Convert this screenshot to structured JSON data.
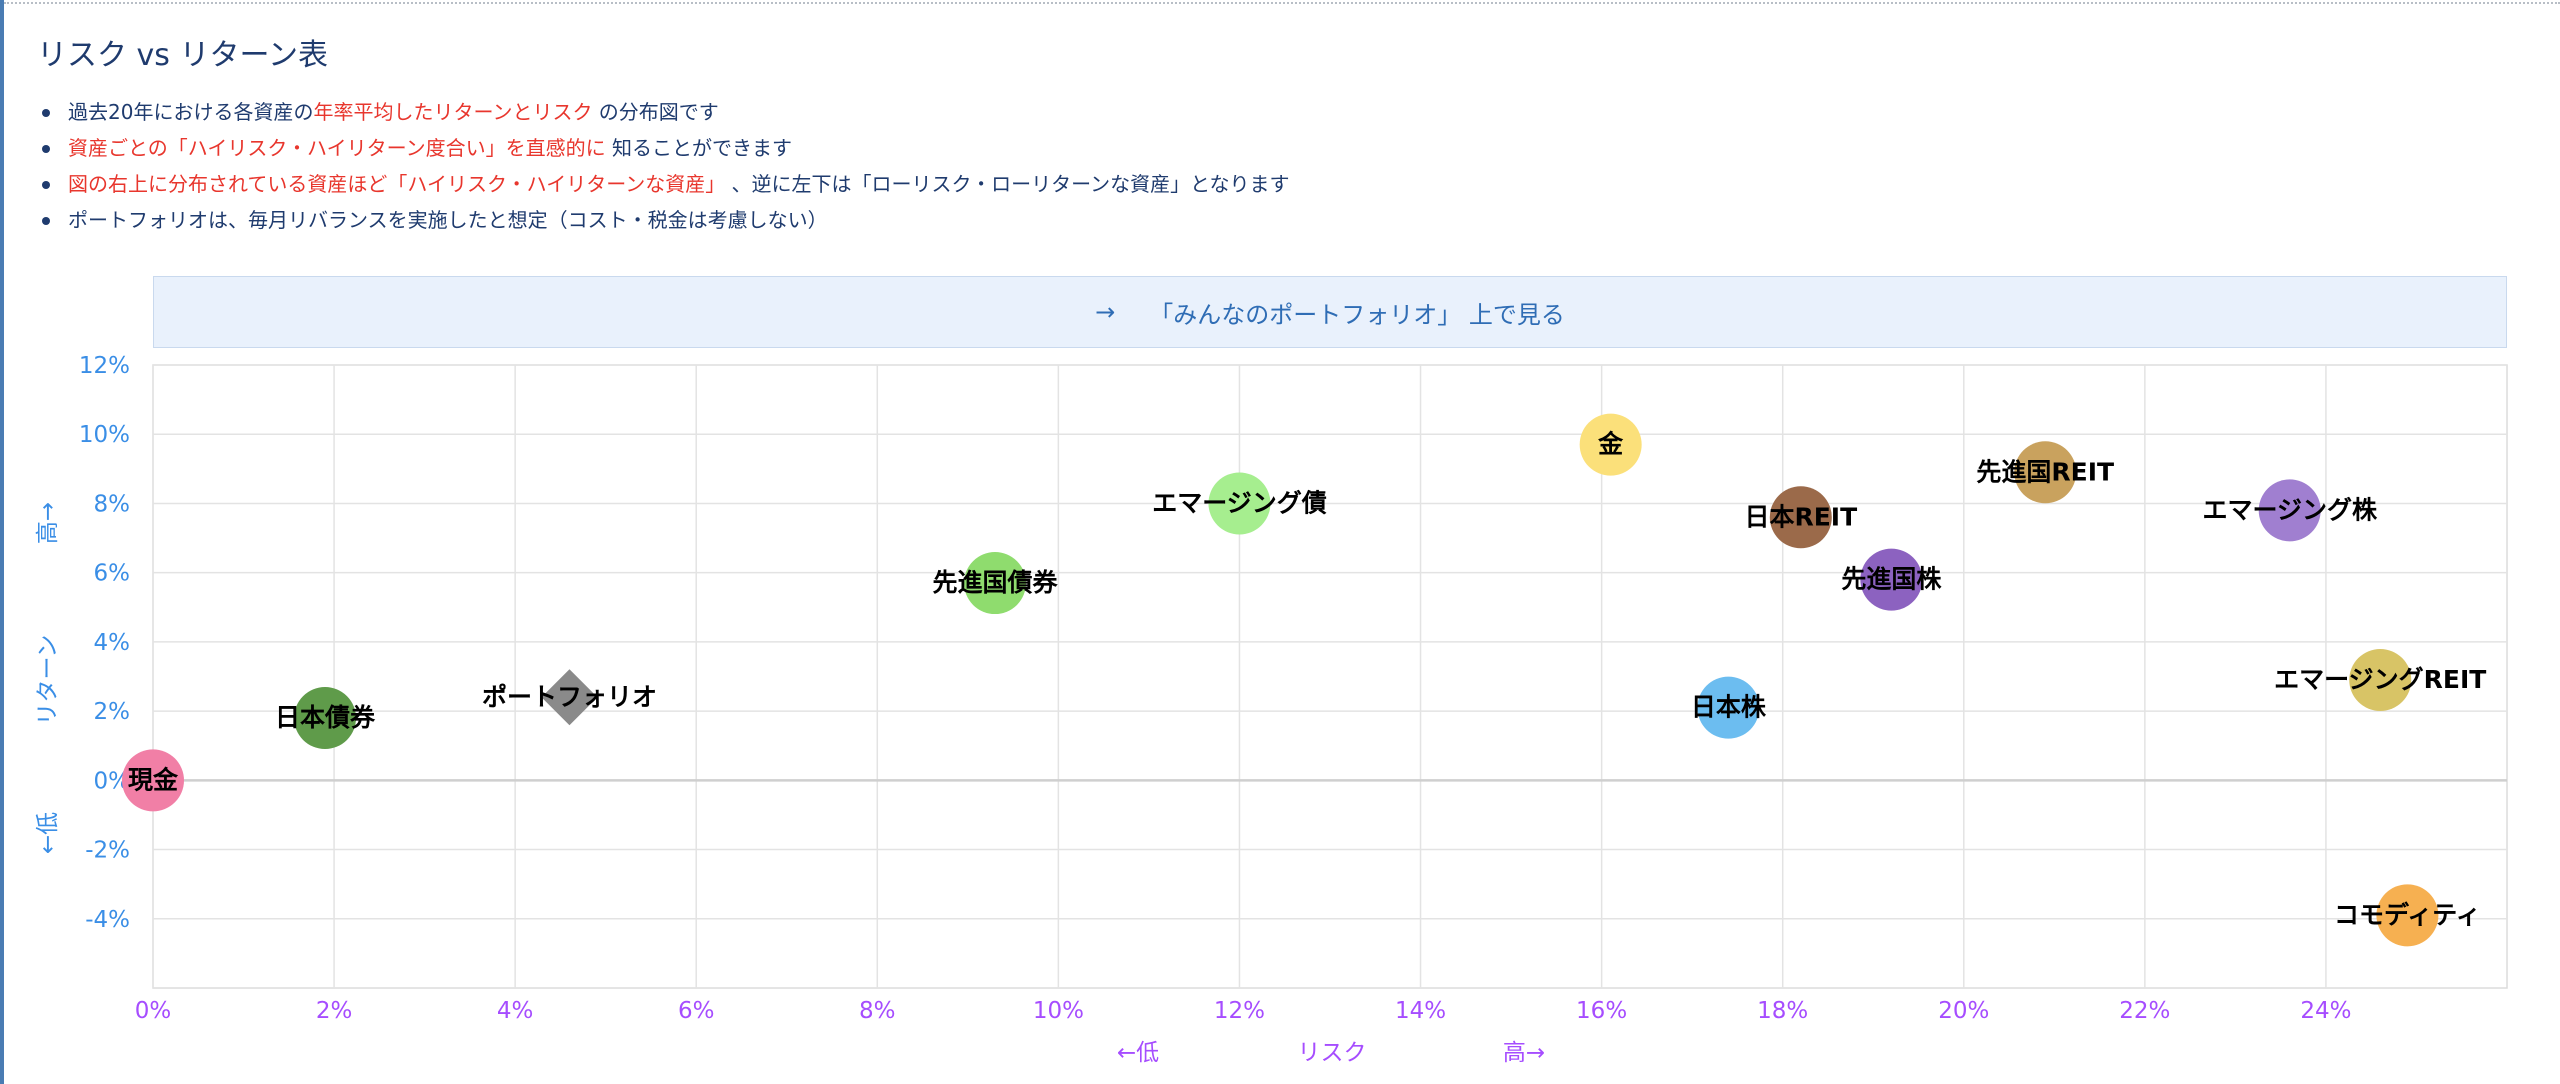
{
  "page": {
    "title": "リスク vs リターン表",
    "notes": [
      {
        "a": "過去20年における各資産の",
        "b": "年率平均したリターンとリスク",
        "c": " の分布図です"
      },
      {
        "a": "",
        "b": "資産ごとの「ハイリスク・ハイリターン度合い」を直感的に",
        "c": " 知ることができます"
      },
      {
        "a": "",
        "b": "図の右上に分布されている資産ほど「ハイリスク・ハイリターンな資産」",
        "c": " 、逆に左下は「ローリスク・ローリターンな資産」となります"
      },
      {
        "a": "ポートフォリオは、毎月リバランスを実施したと想定（コスト・税金は考慮しない）",
        "b": "",
        "c": ""
      }
    ],
    "banner": {
      "arrow": "→",
      "label": "「みんなのポートフォリオ」 上で見る"
    }
  },
  "colors": {
    "text": "#1f3b6e",
    "highlight": "#e8362d",
    "y_axis": "#3a8ee6",
    "x_axis": "#a64dff",
    "banner_bg": "#e9f1fc"
  },
  "chart_data": {
    "type": "scatter",
    "title": "",
    "xlabel": {
      "low": "←低",
      "name": "リスク",
      "high": "高→"
    },
    "ylabel": {
      "low": "←低",
      "name": "リターン",
      "high": "高→"
    },
    "xlim": [
      0,
      26
    ],
    "ylim": [
      -6,
      12
    ],
    "x_ticks": [
      0,
      2,
      4,
      6,
      8,
      10,
      12,
      14,
      16,
      18,
      20,
      22,
      24
    ],
    "y_ticks": [
      12,
      10,
      8,
      6,
      4,
      2,
      0,
      -2,
      -4
    ],
    "grid": true,
    "points": [
      {
        "label": "現金",
        "x": 0.0,
        "y": 0.0,
        "color": "#f17fa6",
        "shape": "circle"
      },
      {
        "label": "日本債券",
        "x": 1.9,
        "y": 1.8,
        "color": "#5f9b4a",
        "shape": "circle"
      },
      {
        "label": "ポートフォリオ",
        "x": 4.6,
        "y": 2.4,
        "color": "#8a8a8a",
        "shape": "diamond"
      },
      {
        "label": "先進国債券",
        "x": 9.3,
        "y": 5.7,
        "color": "#8fdc6e",
        "shape": "circle"
      },
      {
        "label": "エマージング債",
        "x": 12.0,
        "y": 8.0,
        "color": "#a6ee8f",
        "shape": "circle"
      },
      {
        "label": "金",
        "x": 16.1,
        "y": 9.7,
        "color": "#fbe07a",
        "shape": "circle"
      },
      {
        "label": "日本REIT",
        "x": 18.2,
        "y": 7.6,
        "color": "#9b6a4a",
        "shape": "circle"
      },
      {
        "label": "先進国株",
        "x": 19.2,
        "y": 5.8,
        "color": "#8c62c0",
        "shape": "circle"
      },
      {
        "label": "日本株",
        "x": 17.4,
        "y": 2.1,
        "color": "#6cbdf0",
        "shape": "circle"
      },
      {
        "label": "先進国REIT",
        "x": 20.9,
        "y": 8.9,
        "color": "#c9a25e",
        "shape": "circle"
      },
      {
        "label": "エマージング株",
        "x": 23.6,
        "y": 7.8,
        "color": "#a07fd0",
        "shape": "circle"
      },
      {
        "label": "エマージングREIT",
        "x": 24.6,
        "y": 2.9,
        "color": "#d8c466",
        "shape": "circle"
      },
      {
        "label": "コモディティ",
        "x": 24.9,
        "y": -3.9,
        "color": "#f6b051",
        "shape": "circle"
      }
    ]
  }
}
